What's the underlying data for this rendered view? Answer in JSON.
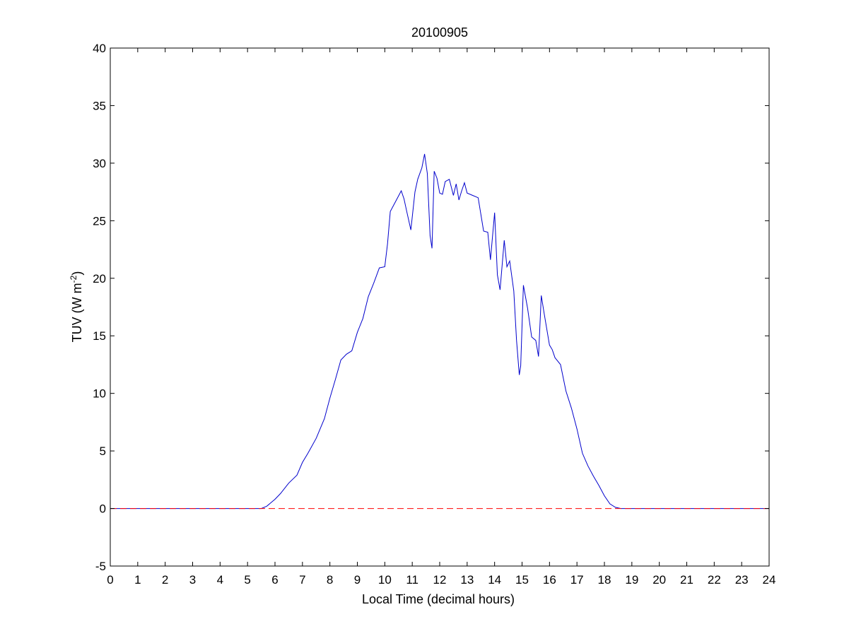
{
  "chart_data": {
    "type": "line",
    "title": "20100905",
    "xlabel": "Local Time (decimal hours)",
    "ylabel": "TUV (W m",
    "ylabel_sup": "-2",
    "ylabel_close": ")",
    "xlim": [
      0,
      24
    ],
    "ylim": [
      -5,
      40
    ],
    "xticks": [
      0,
      1,
      2,
      3,
      4,
      5,
      6,
      7,
      8,
      9,
      10,
      11,
      12,
      13,
      14,
      15,
      16,
      17,
      18,
      19,
      20,
      21,
      22,
      23,
      24
    ],
    "yticks": [
      -5,
      0,
      5,
      10,
      15,
      20,
      25,
      30,
      35,
      40
    ],
    "grid": false,
    "colors": {
      "series": "#0000cc",
      "baseline": "#ff0000"
    },
    "series": [
      {
        "style": "solid",
        "x": [
          0,
          5,
          5.3,
          5.5,
          5.7,
          6.0,
          6.2,
          6.5,
          6.8,
          7.0,
          7.2,
          7.5,
          7.8,
          8.0,
          8.2,
          8.4,
          8.6,
          8.8,
          9.0,
          9.2,
          9.4,
          9.6,
          9.8,
          10.0,
          10.1,
          10.2,
          10.4,
          10.6,
          10.7,
          10.8,
          10.95,
          11.1,
          11.2,
          11.35,
          11.45,
          11.55,
          11.65,
          11.72,
          11.8,
          11.9,
          12.0,
          12.1,
          12.2,
          12.35,
          12.5,
          12.6,
          12.7,
          12.8,
          12.9,
          13.0,
          13.2,
          13.4,
          13.6,
          13.75,
          13.85,
          14.0,
          14.1,
          14.2,
          14.35,
          14.45,
          14.55,
          14.7,
          14.8,
          14.9,
          14.95,
          15.05,
          15.2,
          15.35,
          15.5,
          15.6,
          15.7,
          15.8,
          16.0,
          16.1,
          16.2,
          16.4,
          16.6,
          16.8,
          17.0,
          17.2,
          17.4,
          17.6,
          17.8,
          18.0,
          18.2,
          18.4,
          18.6,
          18.8,
          19.0,
          19.3,
          24
        ],
        "y": [
          0,
          0,
          0,
          0,
          0.2,
          0.8,
          1.3,
          2.2,
          2.9,
          4.0,
          4.8,
          6.1,
          7.8,
          9.6,
          11.2,
          12.9,
          13.4,
          13.7,
          15.3,
          16.5,
          18.4,
          19.6,
          20.9,
          21.0,
          23.0,
          25.8,
          26.7,
          27.6,
          26.9,
          25.8,
          24.2,
          27.5,
          28.6,
          29.6,
          30.8,
          29.1,
          23.7,
          22.6,
          29.3,
          28.7,
          27.4,
          27.3,
          28.4,
          28.6,
          27.2,
          28.2,
          26.8,
          27.6,
          28.3,
          27.4,
          27.2,
          27.0,
          24.1,
          24.0,
          21.6,
          25.7,
          20.3,
          19.0,
          23.3,
          21.0,
          21.5,
          18.9,
          14.6,
          11.6,
          12.4,
          19.4,
          17.4,
          14.9,
          14.6,
          13.2,
          18.5,
          17.0,
          14.2,
          13.8,
          13.1,
          12.5,
          10.2,
          8.7,
          6.9,
          4.8,
          3.7,
          2.8,
          2.0,
          1.1,
          0.4,
          0.1,
          0,
          0,
          0,
          0,
          0
        ]
      },
      {
        "style": "dashed",
        "x": [
          0,
          24
        ],
        "y": [
          0,
          0
        ]
      }
    ]
  }
}
